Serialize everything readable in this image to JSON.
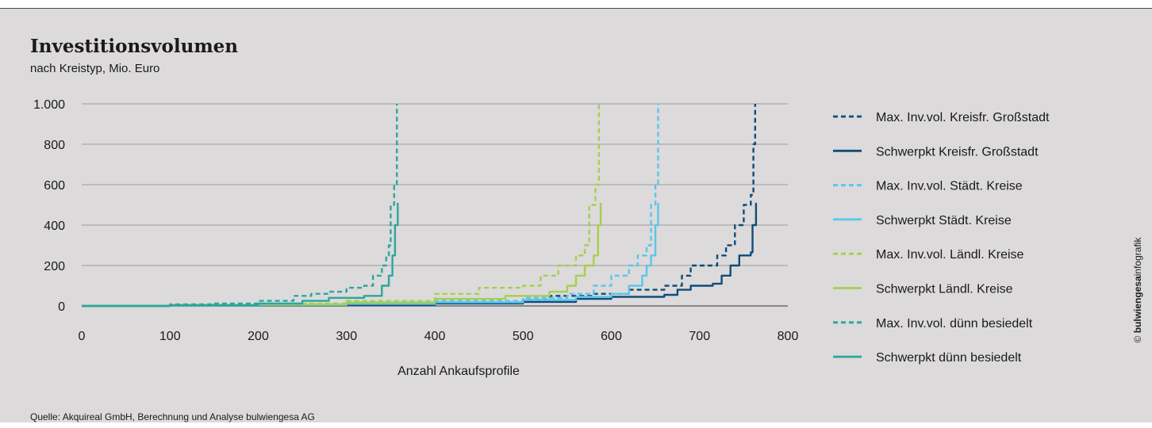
{
  "title": "Investitionsvolumen",
  "subtitle": "nach Kreistyp, Mio. Euro",
  "source": "Quelle: Akquireal GmbH, Berechnung und Analyse bulwiengesa AG",
  "credit": {
    "symbol": "©",
    "brand": "bulwiengesa",
    "suffix": "infografik"
  },
  "chart_data": {
    "type": "line",
    "title": "Investitionsvolumen",
    "subtitle": "nach Kreistyp, Mio. Euro",
    "xlabel": "Anzahl Ankaufsprofile",
    "ylabel": "",
    "xlim": [
      0,
      800
    ],
    "ylim": [
      0,
      1000
    ],
    "x_ticks": [
      0,
      100,
      200,
      300,
      400,
      500,
      600,
      700,
      800
    ],
    "x_tick_labels": [
      "0",
      "100",
      "200",
      "300",
      "400",
      "500",
      "600",
      "700",
      "800"
    ],
    "y_ticks": [
      0,
      200,
      400,
      600,
      800,
      1000
    ],
    "y_tick_labels": [
      "0",
      "200",
      "400",
      "600",
      "800",
      "1.000"
    ],
    "grid": "horizontal",
    "legend_position": "right",
    "series": [
      {
        "name": "Max. Inv.vol. Kreisfr. Großstadt",
        "color": "#0f4c7a",
        "style": "dashed",
        "points": [
          [
            0,
            0
          ],
          [
            100,
            2
          ],
          [
            200,
            5
          ],
          [
            300,
            10
          ],
          [
            400,
            18
          ],
          [
            500,
            30
          ],
          [
            530,
            50
          ],
          [
            580,
            60
          ],
          [
            620,
            80
          ],
          [
            660,
            100
          ],
          [
            680,
            150
          ],
          [
            690,
            200
          ],
          [
            720,
            250
          ],
          [
            730,
            300
          ],
          [
            740,
            400
          ],
          [
            750,
            500
          ],
          [
            758,
            550
          ],
          [
            761,
            800
          ],
          [
            763,
            1000
          ]
        ]
      },
      {
        "name": "Schwerpkt Kreisfr. Großstadt",
        "color": "#0f4c7a",
        "style": "solid",
        "points": [
          [
            0,
            0
          ],
          [
            100,
            1
          ],
          [
            200,
            3
          ],
          [
            300,
            6
          ],
          [
            400,
            12
          ],
          [
            500,
            20
          ],
          [
            560,
            35
          ],
          [
            600,
            45
          ],
          [
            660,
            55
          ],
          [
            675,
            80
          ],
          [
            690,
            100
          ],
          [
            715,
            110
          ],
          [
            725,
            150
          ],
          [
            735,
            200
          ],
          [
            745,
            250
          ],
          [
            758,
            265
          ],
          [
            760,
            400
          ],
          [
            764,
            510
          ]
        ]
      },
      {
        "name": "Max. Inv.vol. Städt. Kreise",
        "color": "#5bc5eb",
        "style": "dashed",
        "points": [
          [
            0,
            0
          ],
          [
            100,
            3
          ],
          [
            200,
            8
          ],
          [
            300,
            15
          ],
          [
            400,
            25
          ],
          [
            500,
            40
          ],
          [
            550,
            60
          ],
          [
            580,
            100
          ],
          [
            600,
            150
          ],
          [
            620,
            200
          ],
          [
            630,
            250
          ],
          [
            640,
            300
          ],
          [
            645,
            500
          ],
          [
            650,
            600
          ],
          [
            653,
            1000
          ]
        ]
      },
      {
        "name": "Schwerpkt Städt. Kreise",
        "color": "#5bc5eb",
        "style": "solid",
        "points": [
          [
            0,
            0
          ],
          [
            100,
            2
          ],
          [
            200,
            5
          ],
          [
            300,
            10
          ],
          [
            400,
            18
          ],
          [
            500,
            30
          ],
          [
            560,
            45
          ],
          [
            600,
            60
          ],
          [
            620,
            100
          ],
          [
            635,
            150
          ],
          [
            640,
            200
          ],
          [
            645,
            250
          ],
          [
            650,
            400
          ],
          [
            653,
            510
          ]
        ]
      },
      {
        "name": "Max. Inv.vol. Ländl. Kreise",
        "color": "#a6cf4f",
        "style": "dashed",
        "points": [
          [
            0,
            0
          ],
          [
            100,
            4
          ],
          [
            200,
            12
          ],
          [
            300,
            25
          ],
          [
            400,
            60
          ],
          [
            450,
            90
          ],
          [
            500,
            100
          ],
          [
            520,
            150
          ],
          [
            540,
            200
          ],
          [
            560,
            250
          ],
          [
            570,
            300
          ],
          [
            575,
            500
          ],
          [
            582,
            600
          ],
          [
            586,
            1000
          ]
        ]
      },
      {
        "name": "Schwerpkt Ländl. Kreise",
        "color": "#a6cf4f",
        "style": "solid",
        "points": [
          [
            0,
            0
          ],
          [
            100,
            3
          ],
          [
            200,
            8
          ],
          [
            300,
            18
          ],
          [
            400,
            35
          ],
          [
            480,
            50
          ],
          [
            530,
            70
          ],
          [
            550,
            100
          ],
          [
            560,
            150
          ],
          [
            570,
            200
          ],
          [
            580,
            250
          ],
          [
            585,
            400
          ],
          [
            588,
            510
          ]
        ]
      },
      {
        "name": "Max. Inv.vol. dünn besiedelt",
        "color": "#2ba79b",
        "style": "dashed",
        "points": [
          [
            0,
            0
          ],
          [
            100,
            8
          ],
          [
            150,
            12
          ],
          [
            200,
            25
          ],
          [
            240,
            50
          ],
          [
            260,
            60
          ],
          [
            280,
            70
          ],
          [
            300,
            90
          ],
          [
            320,
            100
          ],
          [
            330,
            150
          ],
          [
            340,
            200
          ],
          [
            345,
            250
          ],
          [
            348,
            300
          ],
          [
            350,
            500
          ],
          [
            354,
            600
          ],
          [
            357,
            1000
          ]
        ]
      },
      {
        "name": "Schwerpkt dünn besiedelt",
        "color": "#2ba79b",
        "style": "solid",
        "points": [
          [
            0,
            0
          ],
          [
            100,
            4
          ],
          [
            200,
            12
          ],
          [
            250,
            25
          ],
          [
            280,
            40
          ],
          [
            320,
            50
          ],
          [
            340,
            100
          ],
          [
            348,
            150
          ],
          [
            352,
            250
          ],
          [
            355,
            400
          ],
          [
            358,
            510
          ]
        ]
      }
    ]
  }
}
